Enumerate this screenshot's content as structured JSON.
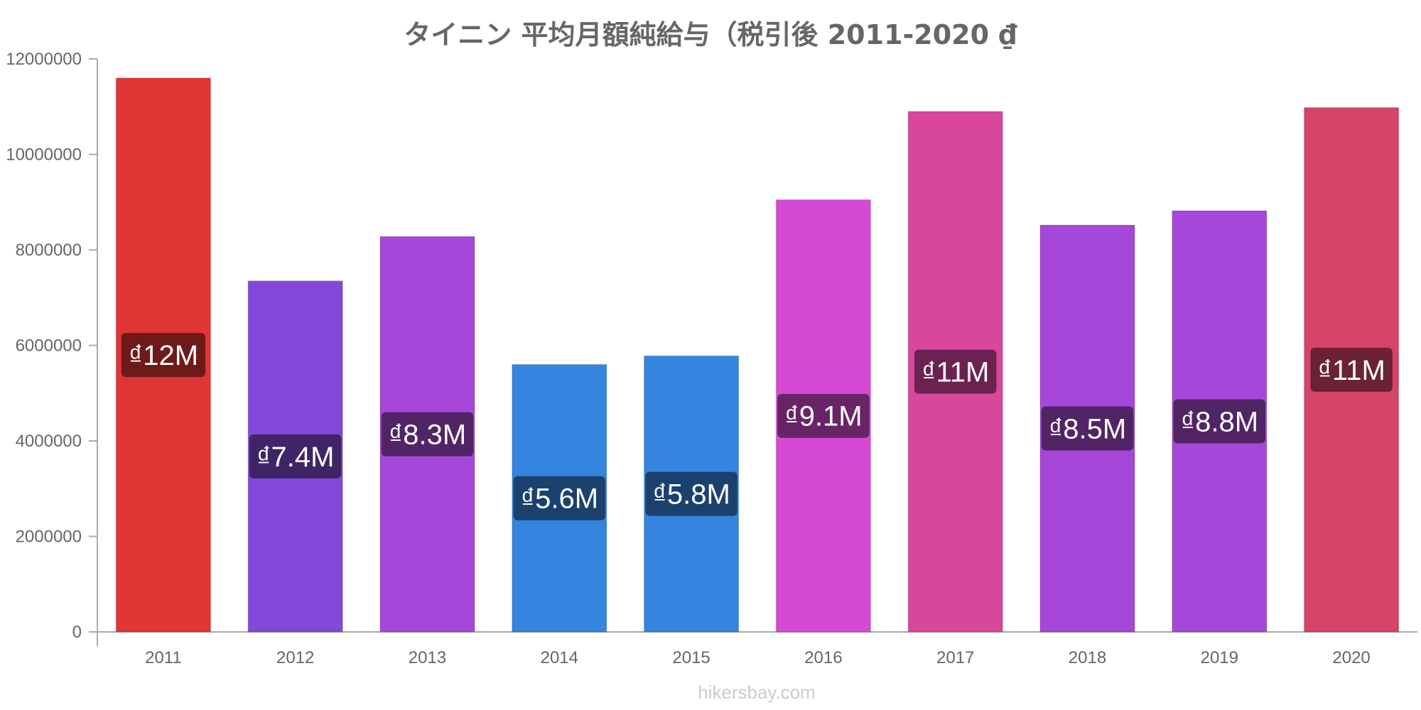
{
  "chart_data": {
    "type": "bar",
    "title": "タイニン 平均月額純給与（税引後 2011-2020 ₫",
    "categories": [
      "2011",
      "2012",
      "2013",
      "2014",
      "2015",
      "2016",
      "2017",
      "2018",
      "2019",
      "2020"
    ],
    "values": [
      11600000,
      7350000,
      8280000,
      5600000,
      5780000,
      9050000,
      10900000,
      8520000,
      8820000,
      10980000
    ],
    "data_labels": [
      "₫12M",
      "₫7.4M",
      "₫8.3M",
      "₫5.6M",
      "₫5.8M",
      "₫9.1M",
      "₫11M",
      "₫8.5M",
      "₫8.8M",
      "₫11M"
    ],
    "bar_colors": [
      "#e03535",
      "#8249d8",
      "#a547d8",
      "#3584e0",
      "#3584e0",
      "#d54ad3",
      "#d8479a",
      "#a547d8",
      "#a547d8",
      "#d54367"
    ],
    "label_bg_colors": [
      "#6e1a1a",
      "#3f2566",
      "#512466",
      "#1b416e",
      "#1b416e",
      "#682466",
      "#6a2350",
      "#512466",
      "#512466",
      "#6a2234"
    ],
    "y_ticks": [
      "0",
      "2000000",
      "4000000",
      "6000000",
      "8000000",
      "10000000",
      "12000000"
    ],
    "ylim": [
      0,
      12000000
    ],
    "xlabel": "",
    "ylabel": "",
    "grid": false,
    "legend": "none"
  },
  "watermark": "hikersbay.com"
}
